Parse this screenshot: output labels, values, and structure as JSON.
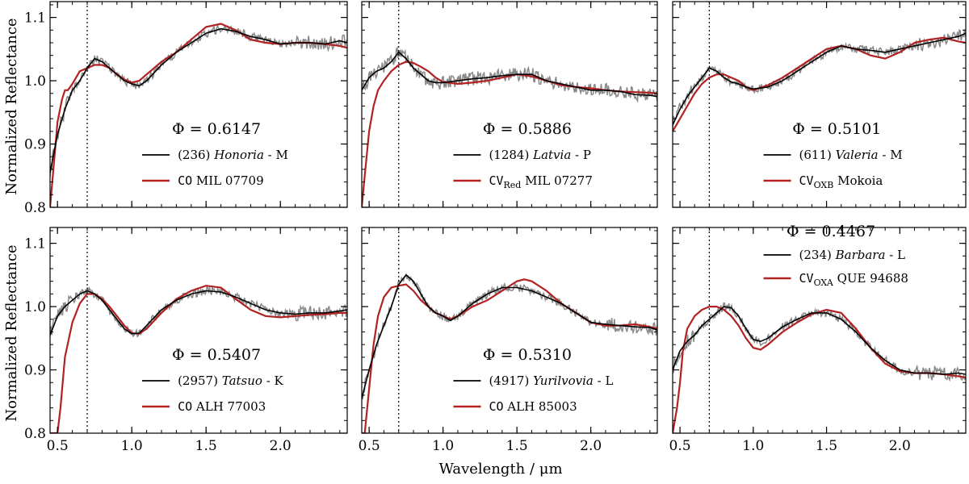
{
  "figure": {
    "ylabel": "Normalized Reflectance",
    "xlabel": "Wavelength / μm",
    "xticks": [
      0.5,
      1.0,
      1.5,
      2.0
    ],
    "yticks": [
      0.8,
      0.9,
      1.0,
      1.1
    ],
    "xlim": [
      0.45,
      2.45
    ],
    "ylim": [
      0.8,
      1.125
    ],
    "vline_x": 0.7,
    "colors": {
      "asteroid": "#000000",
      "meteorite": "#b22222",
      "noisy": "#888888"
    }
  },
  "chart_data": [
    {
      "type": "line",
      "phi": "Φ = 0.6147",
      "asteroid": {
        "number": "(236)",
        "name": "Honoria",
        "class": " - M"
      },
      "meteorite": {
        "group": "CO",
        "sub": "",
        "name": "MIL 07709"
      },
      "series": [
        {
          "name": "asteroid",
          "x": [
            0.45,
            0.5,
            0.55,
            0.6,
            0.65,
            0.7,
            0.75,
            0.8,
            0.85,
            0.9,
            0.95,
            1.0,
            1.05,
            1.1,
            1.2,
            1.3,
            1.4,
            1.5,
            1.6,
            1.7,
            1.8,
            1.9,
            2.0,
            2.1,
            2.2,
            2.3,
            2.4,
            2.45
          ],
          "y": [
            0.855,
            0.915,
            0.955,
            0.985,
            1.0,
            1.02,
            1.035,
            1.03,
            1.02,
            1.01,
            1.0,
            0.995,
            0.992,
            1.0,
            1.025,
            1.045,
            1.06,
            1.075,
            1.082,
            1.078,
            1.07,
            1.065,
            1.058,
            1.06,
            1.06,
            1.058,
            1.063,
            1.06
          ]
        },
        {
          "name": "meteorite",
          "x": [
            0.45,
            0.48,
            0.5,
            0.53,
            0.55,
            0.57,
            0.6,
            0.65,
            0.7,
            0.75,
            0.8,
            0.85,
            0.9,
            0.95,
            1.0,
            1.05,
            1.1,
            1.2,
            1.3,
            1.4,
            1.5,
            1.6,
            1.7,
            1.8,
            1.9,
            2.0,
            2.1,
            2.2,
            2.3,
            2.4,
            2.45
          ],
          "y": [
            0.8,
            0.88,
            0.935,
            0.97,
            0.985,
            0.985,
            0.995,
            1.015,
            1.02,
            1.025,
            1.025,
            1.02,
            1.01,
            1.002,
            0.997,
            1.0,
            1.01,
            1.03,
            1.045,
            1.065,
            1.085,
            1.09,
            1.08,
            1.065,
            1.06,
            1.058,
            1.06,
            1.06,
            1.058,
            1.055,
            1.052
          ]
        }
      ]
    },
    {
      "type": "line",
      "phi": "Φ = 0.5886",
      "asteroid": {
        "number": "(1284)",
        "name": "Latvia",
        "class": " - P"
      },
      "meteorite": {
        "group": "CV",
        "sub": "Red",
        "name": "MIL 07277"
      },
      "series": [
        {
          "name": "asteroid",
          "x": [
            0.45,
            0.5,
            0.55,
            0.6,
            0.65,
            0.7,
            0.75,
            0.8,
            0.85,
            0.9,
            0.95,
            1.0,
            1.1,
            1.2,
            1.3,
            1.4,
            1.5,
            1.6,
            1.7,
            1.8,
            1.9,
            2.0,
            2.1,
            2.2,
            2.3,
            2.4,
            2.45
          ],
          "y": [
            0.985,
            1.005,
            1.015,
            1.02,
            1.03,
            1.045,
            1.035,
            1.02,
            1.01,
            1.0,
            0.997,
            0.997,
            1.0,
            1.003,
            1.005,
            1.008,
            1.01,
            1.01,
            1.0,
            0.995,
            0.99,
            0.985,
            0.985,
            0.983,
            0.978,
            0.977,
            0.975
          ]
        },
        {
          "name": "meteorite",
          "x": [
            0.45,
            0.47,
            0.5,
            0.53,
            0.56,
            0.6,
            0.65,
            0.7,
            0.75,
            0.8,
            0.85,
            0.9,
            0.95,
            1.0,
            1.1,
            1.2,
            1.3,
            1.4,
            1.5,
            1.6,
            1.7,
            1.8,
            1.9,
            2.0,
            2.1,
            2.2,
            2.3,
            2.4,
            2.45
          ],
          "y": [
            0.8,
            0.85,
            0.92,
            0.96,
            0.985,
            1.0,
            1.015,
            1.025,
            1.03,
            1.028,
            1.022,
            1.015,
            1.005,
            0.998,
            0.995,
            0.997,
            1.0,
            1.005,
            1.01,
            1.007,
            1.0,
            0.993,
            0.99,
            0.988,
            0.985,
            0.983,
            0.982,
            0.981,
            0.98
          ]
        }
      ]
    },
    {
      "type": "line",
      "phi": "Φ = 0.5101",
      "asteroid": {
        "number": "(611)",
        "name": "Valeria",
        "class": " - M"
      },
      "meteorite": {
        "group": "CV",
        "sub": "OXB",
        "name": "Mokoia"
      },
      "series": [
        {
          "name": "asteroid",
          "x": [
            0.45,
            0.5,
            0.55,
            0.6,
            0.65,
            0.7,
            0.75,
            0.8,
            0.85,
            0.9,
            0.95,
            1.0,
            1.1,
            1.2,
            1.3,
            1.4,
            1.5,
            1.6,
            1.7,
            1.8,
            1.9,
            2.0,
            2.1,
            2.2,
            2.3,
            2.4,
            2.45
          ],
          "y": [
            0.93,
            0.955,
            0.975,
            0.99,
            1.005,
            1.02,
            1.015,
            1.005,
            0.998,
            0.995,
            0.99,
            0.987,
            0.99,
            1.0,
            1.015,
            1.03,
            1.045,
            1.055,
            1.05,
            1.048,
            1.045,
            1.05,
            1.055,
            1.06,
            1.065,
            1.07,
            1.075
          ]
        },
        {
          "name": "meteorite",
          "x": [
            0.45,
            0.5,
            0.55,
            0.6,
            0.65,
            0.7,
            0.75,
            0.8,
            0.85,
            0.9,
            0.95,
            1.0,
            1.1,
            1.2,
            1.3,
            1.4,
            1.5,
            1.6,
            1.7,
            1.8,
            1.9,
            2.0,
            2.1,
            2.2,
            2.3,
            2.4,
            2.45
          ],
          "y": [
            0.92,
            0.94,
            0.96,
            0.98,
            0.995,
            1.005,
            1.01,
            1.01,
            1.005,
            1.0,
            0.99,
            0.985,
            0.993,
            1.005,
            1.02,
            1.035,
            1.05,
            1.055,
            1.05,
            1.04,
            1.035,
            1.045,
            1.06,
            1.065,
            1.068,
            1.062,
            1.06
          ]
        }
      ]
    },
    {
      "type": "line",
      "phi": "Φ = 0.5407",
      "asteroid": {
        "number": "(2957)",
        "name": "Tatsuo",
        "class": " - K"
      },
      "meteorite": {
        "group": "CO",
        "sub": "",
        "name": "ALH 77003"
      },
      "series": [
        {
          "name": "asteroid",
          "x": [
            0.45,
            0.5,
            0.55,
            0.6,
            0.65,
            0.7,
            0.75,
            0.8,
            0.85,
            0.9,
            0.95,
            1.0,
            1.05,
            1.1,
            1.2,
            1.3,
            1.4,
            1.5,
            1.6,
            1.7,
            1.8,
            1.9,
            2.0,
            2.1,
            2.2,
            2.3,
            2.4,
            2.45
          ],
          "y": [
            0.955,
            0.985,
            1.0,
            1.01,
            1.02,
            1.025,
            1.02,
            1.01,
            0.995,
            0.98,
            0.965,
            0.957,
            0.958,
            0.97,
            0.995,
            1.01,
            1.02,
            1.025,
            1.023,
            1.015,
            1.005,
            0.995,
            0.99,
            0.988,
            0.99,
            0.99,
            0.993,
            0.995
          ]
        },
        {
          "name": "meteorite",
          "x": [
            0.45,
            0.5,
            0.52,
            0.55,
            0.6,
            0.65,
            0.7,
            0.75,
            0.8,
            0.85,
            0.9,
            0.95,
            1.0,
            1.05,
            1.1,
            1.2,
            1.3,
            1.4,
            1.5,
            1.6,
            1.7,
            1.8,
            1.9,
            2.0,
            2.1,
            2.2,
            2.3,
            2.4,
            2.45
          ],
          "y": [
            0.8,
            0.8,
            0.84,
            0.92,
            0.975,
            1.005,
            1.02,
            1.02,
            1.012,
            1.0,
            0.985,
            0.97,
            0.958,
            0.957,
            0.965,
            0.99,
            1.012,
            1.025,
            1.033,
            1.03,
            1.012,
            0.995,
            0.985,
            0.983,
            0.985,
            0.987,
            0.988,
            0.99,
            0.99
          ]
        }
      ]
    },
    {
      "type": "line",
      "phi": "Φ = 0.5310",
      "asteroid": {
        "number": "(4917)",
        "name": "Yurilvovia",
        "class": " - L"
      },
      "meteorite": {
        "group": "CO",
        "sub": "",
        "name": "ALH 85003"
      },
      "series": [
        {
          "name": "asteroid",
          "x": [
            0.45,
            0.5,
            0.55,
            0.6,
            0.65,
            0.7,
            0.75,
            0.8,
            0.85,
            0.9,
            0.95,
            1.0,
            1.05,
            1.1,
            1.2,
            1.3,
            1.4,
            1.5,
            1.6,
            1.7,
            1.8,
            1.9,
            2.0,
            2.1,
            2.2,
            2.3,
            2.4,
            2.45
          ],
          "y": [
            0.855,
            0.9,
            0.94,
            0.97,
            1.0,
            1.035,
            1.05,
            1.04,
            1.02,
            1.0,
            0.99,
            0.985,
            0.978,
            0.985,
            1.005,
            1.02,
            1.03,
            1.03,
            1.025,
            1.015,
            1.005,
            0.99,
            0.975,
            0.972,
            0.97,
            0.968,
            0.967,
            0.963
          ]
        },
        {
          "name": "meteorite",
          "x": [
            0.45,
            0.47,
            0.5,
            0.53,
            0.56,
            0.6,
            0.65,
            0.7,
            0.75,
            0.8,
            0.85,
            0.9,
            0.95,
            1.0,
            1.05,
            1.1,
            1.2,
            1.3,
            1.4,
            1.5,
            1.55,
            1.6,
            1.7,
            1.8,
            1.9,
            2.0,
            2.1,
            2.2,
            2.3,
            2.4,
            2.45
          ],
          "y": [
            0.8,
            0.8,
            0.87,
            0.94,
            0.985,
            1.015,
            1.03,
            1.033,
            1.035,
            1.025,
            1.01,
            1.0,
            0.99,
            0.985,
            0.98,
            0.985,
            1.0,
            1.01,
            1.025,
            1.04,
            1.043,
            1.04,
            1.025,
            1.005,
            0.99,
            0.975,
            0.97,
            0.97,
            0.972,
            0.968,
            0.965
          ]
        }
      ]
    },
    {
      "type": "line",
      "phi": "Φ = 0.4467",
      "asteroid": {
        "number": "(234)",
        "name": "Barbara",
        "class": " - L"
      },
      "meteorite": {
        "group": "CV",
        "sub": "OXA",
        "name": "QUE 94688"
      },
      "series": [
        {
          "name": "asteroid",
          "x": [
            0.45,
            0.5,
            0.55,
            0.6,
            0.65,
            0.7,
            0.75,
            0.8,
            0.85,
            0.9,
            0.95,
            1.0,
            1.05,
            1.1,
            1.2,
            1.3,
            1.4,
            1.5,
            1.6,
            1.7,
            1.8,
            1.9,
            2.0,
            2.1,
            2.2,
            2.3,
            2.4,
            2.45
          ],
          "y": [
            0.9,
            0.93,
            0.945,
            0.955,
            0.97,
            0.98,
            0.99,
            1.0,
            0.998,
            0.985,
            0.965,
            0.948,
            0.945,
            0.95,
            0.968,
            0.98,
            0.99,
            0.99,
            0.98,
            0.96,
            0.935,
            0.915,
            0.9,
            0.895,
            0.895,
            0.893,
            0.895,
            0.893
          ]
        },
        {
          "name": "meteorite",
          "x": [
            0.45,
            0.48,
            0.5,
            0.52,
            0.55,
            0.6,
            0.65,
            0.7,
            0.75,
            0.8,
            0.85,
            0.9,
            0.95,
            1.0,
            1.05,
            1.1,
            1.2,
            1.3,
            1.4,
            1.5,
            1.6,
            1.7,
            1.8,
            1.9,
            2.0,
            2.1,
            2.2,
            2.3,
            2.4,
            2.45
          ],
          "y": [
            0.8,
            0.84,
            0.88,
            0.93,
            0.965,
            0.985,
            0.995,
            1.0,
            1.0,
            0.995,
            0.985,
            0.97,
            0.95,
            0.935,
            0.932,
            0.94,
            0.96,
            0.975,
            0.988,
            0.995,
            0.99,
            0.965,
            0.935,
            0.91,
            0.898,
            0.895,
            0.895,
            0.893,
            0.89,
            0.888
          ]
        }
      ]
    }
  ]
}
